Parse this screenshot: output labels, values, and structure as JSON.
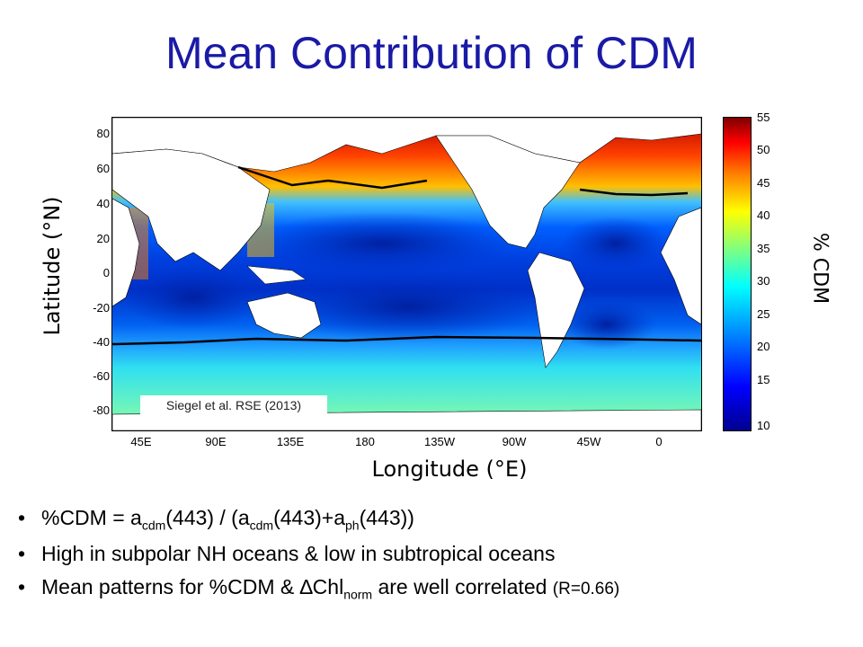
{
  "title": "Mean Contribution of CDM",
  "map": {
    "yticks": [
      "80",
      "60",
      "40",
      "20",
      "0",
      "-20",
      "-40",
      "-60",
      "-80"
    ],
    "xticks": [
      "45E",
      "90E",
      "135E",
      "180",
      "135W",
      "90W",
      "45W",
      "0"
    ],
    "ylabel": "Latitude (°N)",
    "xlabel": "Longitude (°E)",
    "citation": "Siegel et al. RSE (2013)",
    "colorbar_ticks": [
      "55",
      "50",
      "45",
      "40",
      "35",
      "30",
      "25",
      "20",
      "15",
      "10"
    ],
    "colorbar_label": "% CDM",
    "colors": {
      "ocean_low": "#0000c8",
      "ocean_mid": "#00c8ff",
      "ocean_high": "#c80000",
      "land": "#ffffff",
      "front_line": "#000000"
    }
  },
  "bullets": {
    "b1": {
      "pre": "%CDM = a",
      "s1": "cdm",
      "m1": "(443) / (a",
      "s2": "cdm",
      "m2": "(443)+a",
      "s3": "ph",
      "end": "(443))"
    },
    "b2": {
      "text": "High in subpolar NH oceans & low in subtropical oceans"
    },
    "b3": {
      "pre": "Mean patterns for %CDM & ∆Chl",
      "sub": "norm",
      "mid": " are well correlated ",
      "small": "(R=0.66)"
    }
  }
}
